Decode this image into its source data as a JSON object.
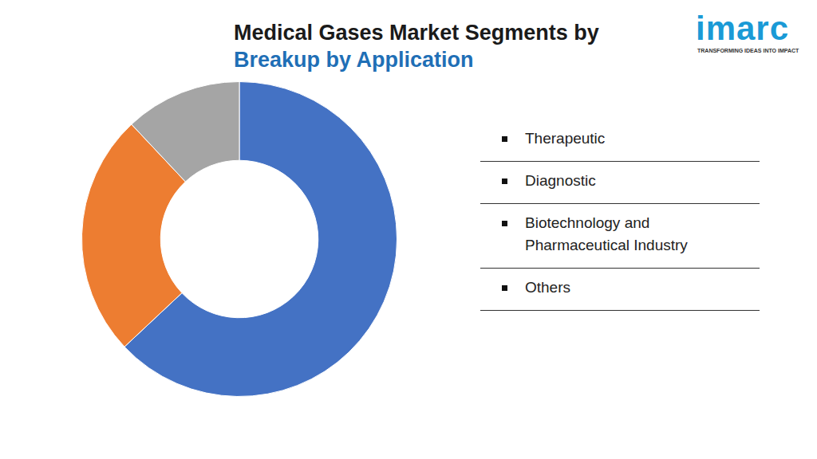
{
  "chart_data": {
    "type": "doughnut",
    "title": "Medical Gases Market Segments by",
    "subtitle": "Breakup by Application",
    "annotations": [
      "imarc",
      "TRANSFORMING IDEAS INTO IMPACT"
    ],
    "categories": [
      "Therapeutic",
      "Diagnostic",
      "Biotechnology and Pharmaceutical Industry",
      "Others"
    ],
    "values": [
      63,
      25,
      12,
      0
    ],
    "colors": [
      "#4472c4",
      "#ed7d31",
      "#a5a5a5",
      "#ffc000"
    ],
    "legend": "right"
  }
}
